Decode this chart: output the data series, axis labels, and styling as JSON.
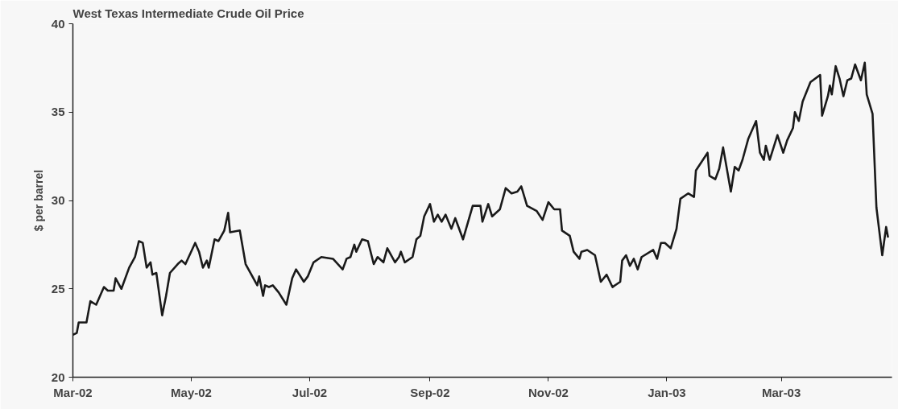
{
  "chart_data": {
    "type": "line",
    "title": "West Texas Intermediate Crude Oil Price",
    "ylabel": "$ per barrel",
    "xlim": [
      "2002-03-01",
      "2003-04-27"
    ],
    "ylim": [
      20,
      40
    ],
    "yticks": [
      20,
      25,
      30,
      35,
      40
    ],
    "xticks": [
      {
        "value": "2002-03-01",
        "label": "Mar-02"
      },
      {
        "value": "2002-05-01",
        "label": "May-02"
      },
      {
        "value": "2002-07-01",
        "label": "Jul-02"
      },
      {
        "value": "2002-09-01",
        "label": "Sep-02"
      },
      {
        "value": "2002-11-01",
        "label": "Nov-02"
      },
      {
        "value": "2003-01-01",
        "label": "Jan-03"
      },
      {
        "value": "2003-03-01",
        "label": "Mar-03"
      }
    ],
    "grid": false,
    "marker": "none",
    "line_style": "solid",
    "series": [
      {
        "color": "#1a1a1a",
        "x": [
          "2002-03-01",
          "2002-03-03",
          "2002-03-04",
          "2002-03-08",
          "2002-03-10",
          "2002-03-13",
          "2002-03-15",
          "2002-03-17",
          "2002-03-19",
          "2002-03-22",
          "2002-03-23",
          "2002-03-26",
          "2002-03-30",
          "2002-04-02",
          "2002-04-04",
          "2002-04-06",
          "2002-04-08",
          "2002-04-10",
          "2002-04-11",
          "2002-04-13",
          "2002-04-16",
          "2002-04-18",
          "2002-04-20",
          "2002-04-24",
          "2002-04-26",
          "2002-04-28",
          "2002-05-03",
          "2002-05-05",
          "2002-05-07",
          "2002-05-09",
          "2002-05-10",
          "2002-05-13",
          "2002-05-15",
          "2002-05-18",
          "2002-05-20",
          "2002-05-21",
          "2002-05-26",
          "2002-05-29",
          "2002-06-04",
          "2002-06-05",
          "2002-06-07",
          "2002-06-08",
          "2002-06-10",
          "2002-06-12",
          "2002-06-15",
          "2002-06-19",
          "2002-06-22",
          "2002-06-24",
          "2002-06-28",
          "2002-06-30",
          "2002-07-03",
          "2002-07-07",
          "2002-07-13",
          "2002-07-18",
          "2002-07-20",
          "2002-07-22",
          "2002-07-24",
          "2002-07-25",
          "2002-07-28",
          "2002-07-31",
          "2002-08-03",
          "2002-08-05",
          "2002-08-08",
          "2002-08-10",
          "2002-08-14",
          "2002-08-16",
          "2002-08-17",
          "2002-08-19",
          "2002-08-23",
          "2002-08-25",
          "2002-08-27",
          "2002-08-29",
          "2002-09-01",
          "2002-09-03",
          "2002-09-05",
          "2002-09-07",
          "2002-09-09",
          "2002-09-12",
          "2002-09-14",
          "2002-09-18",
          "2002-09-23",
          "2002-09-27",
          "2002-09-28",
          "2002-10-01",
          "2002-10-03",
          "2002-10-07",
          "2002-10-10",
          "2002-10-13",
          "2002-10-16",
          "2002-10-18",
          "2002-10-21",
          "2002-10-26",
          "2002-10-29",
          "2002-11-01",
          "2002-11-04",
          "2002-11-07",
          "2002-11-08",
          "2002-11-12",
          "2002-11-14",
          "2002-11-17",
          "2002-11-18",
          "2002-11-21",
          "2002-11-25",
          "2002-11-28",
          "2002-12-01",
          "2002-12-04",
          "2002-12-08",
          "2002-12-09",
          "2002-12-11",
          "2002-12-13",
          "2002-12-15",
          "2002-12-17",
          "2002-12-19",
          "2002-12-25",
          "2002-12-27",
          "2002-12-29",
          "2002-12-31",
          "2003-01-03",
          "2003-01-06",
          "2003-01-08",
          "2003-01-12",
          "2003-01-15",
          "2003-01-16",
          "2003-01-22",
          "2003-01-23",
          "2003-01-26",
          "2003-01-28",
          "2003-01-30",
          "2003-02-03",
          "2003-02-05",
          "2003-02-07",
          "2003-02-09",
          "2003-02-12",
          "2003-02-16",
          "2003-02-18",
          "2003-02-20",
          "2003-02-21",
          "2003-02-23",
          "2003-02-27",
          "2003-03-02",
          "2003-03-04",
          "2003-03-07",
          "2003-03-08",
          "2003-03-10",
          "2003-03-12",
          "2003-03-16",
          "2003-03-21",
          "2003-03-22",
          "2003-03-25",
          "2003-03-26",
          "2003-03-27",
          "2003-03-29",
          "2003-03-31",
          "2003-04-02",
          "2003-04-04",
          "2003-04-06",
          "2003-04-08",
          "2003-04-11",
          "2003-04-13",
          "2003-04-14",
          "2003-04-17",
          "2003-04-19",
          "2003-04-22",
          "2003-04-24",
          "2003-04-25"
        ],
        "values": [
          22.4,
          22.5,
          23.1,
          23.1,
          24.3,
          24.1,
          24.6,
          25.1,
          24.9,
          24.9,
          25.6,
          25.0,
          26.2,
          26.8,
          27.7,
          27.6,
          26.2,
          26.5,
          25.8,
          25.9,
          23.5,
          24.6,
          25.9,
          26.4,
          26.6,
          26.4,
          27.6,
          27.1,
          26.2,
          26.6,
          26.2,
          27.8,
          27.7,
          28.3,
          29.3,
          28.2,
          28.3,
          26.4,
          25.2,
          25.7,
          24.6,
          25.2,
          25.1,
          25.2,
          24.8,
          24.1,
          25.6,
          26.1,
          25.4,
          25.7,
          26.5,
          26.8,
          26.7,
          26.1,
          26.7,
          26.8,
          27.5,
          27.1,
          27.8,
          27.7,
          26.4,
          26.8,
          26.5,
          27.3,
          26.5,
          26.8,
          27.1,
          26.5,
          26.8,
          27.8,
          28.0,
          29.1,
          29.8,
          28.8,
          29.2,
          28.8,
          29.2,
          28.4,
          29.0,
          27.8,
          29.7,
          29.7,
          28.8,
          29.8,
          29.1,
          29.5,
          30.7,
          30.4,
          30.5,
          30.8,
          29.7,
          29.4,
          28.9,
          29.9,
          29.5,
          29.5,
          28.3,
          28.0,
          27.1,
          26.7,
          27.1,
          27.2,
          26.9,
          25.4,
          25.8,
          25.1,
          25.4,
          26.6,
          26.9,
          26.3,
          26.7,
          26.1,
          26.8,
          27.2,
          26.7,
          27.6,
          27.6,
          27.3,
          28.4,
          30.1,
          30.4,
          30.2,
          31.7,
          32.7,
          31.4,
          31.2,
          31.8,
          33.0,
          30.5,
          31.9,
          31.7,
          32.3,
          33.5,
          34.5,
          32.7,
          32.3,
          33.1,
          32.3,
          33.7,
          32.7,
          33.4,
          34.1,
          35.0,
          34.5,
          35.6,
          36.7,
          37.1,
          34.8,
          35.9,
          36.5,
          36.0,
          37.6,
          36.9,
          35.9,
          36.8,
          36.9,
          37.7,
          36.8,
          37.8,
          36.0,
          34.9,
          29.6,
          26.9,
          28.5,
          27.9
        ]
      }
    ]
  }
}
